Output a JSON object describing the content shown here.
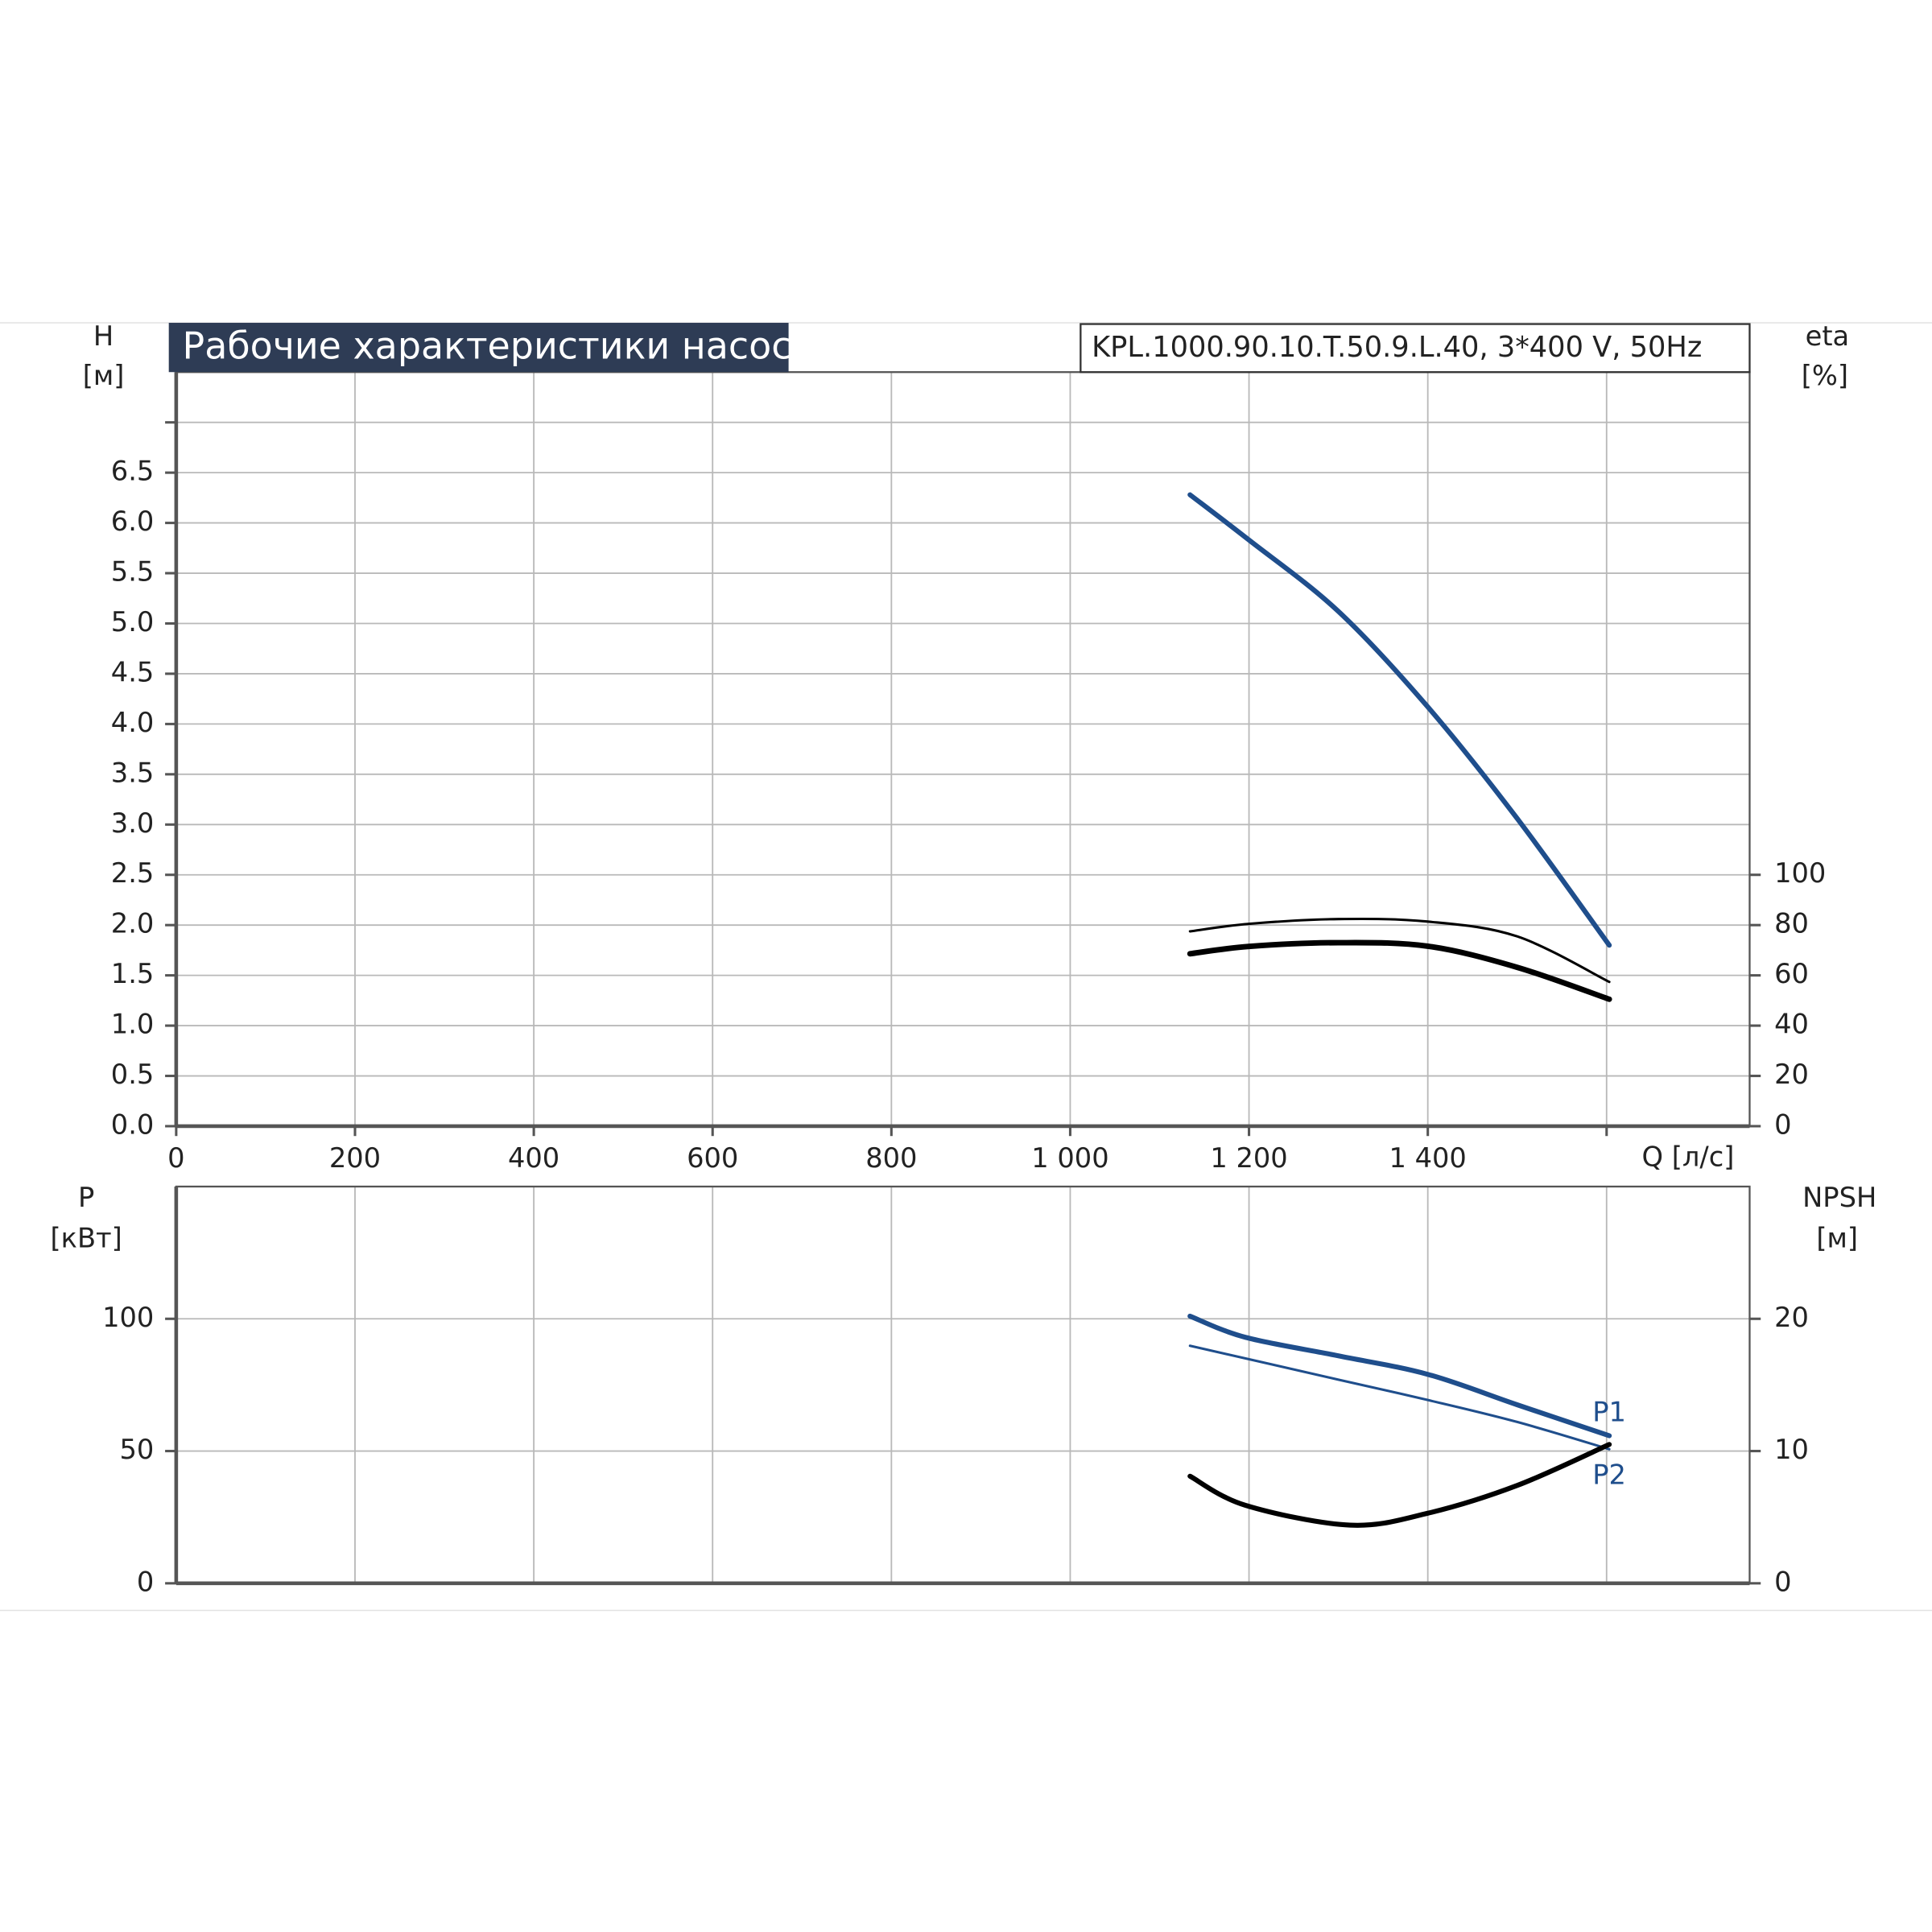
{
  "chart_data": [
    {
      "type": "line",
      "title": "Рабочие характеристики насоса",
      "subtitle": "KPL.1000.90.10.T.50.9.L.40, 3*400 V, 50Hz",
      "ylabel": "H",
      "yunit": "[м]",
      "y2label": "eta",
      "y2unit": "[%]",
      "xlabel": "Q [л/с]",
      "xlim": [
        0,
        1760
      ],
      "xticks": [
        0,
        200,
        400,
        600,
        800,
        {
          "value": 1000,
          "label": "1 000"
        },
        {
          "value": 1200,
          "label": "1 200"
        },
        {
          "value": 1400,
          "label": "1 400"
        },
        {
          "value": 1600,
          "label": null
        }
      ],
      "ylim": [
        0,
        7.5
      ],
      "yticks": [
        {
          "value": 0,
          "label": "0.0"
        },
        0.5,
        {
          "value": 1,
          "label": "1.0"
        },
        1.5,
        {
          "value": 2,
          "label": "2.0"
        },
        2.5,
        {
          "value": 3,
          "label": "3.0"
        },
        3.5,
        {
          "value": 4,
          "label": "4.0"
        },
        4.5,
        {
          "value": 5,
          "label": "5.0"
        },
        5.5,
        {
          "value": 6,
          "label": "6.0"
        },
        6.5,
        {
          "value": 7,
          "label": null
        }
      ],
      "y2lim": [
        0,
        300
      ],
      "y2ticks": [
        0,
        20,
        40,
        60,
        80,
        100
      ],
      "grid": true,
      "series": [
        {
          "color": "#1f4e8c",
          "line_width": 4,
          "x": [
            1134,
            1200,
            1300,
            1400,
            1500,
            1603
          ],
          "values": [
            6.28,
            5.83,
            5.12,
            4.17,
            3.06,
            1.8
          ]
        },
        {
          "color": "#000000",
          "line_width": 2,
          "axis": "y2",
          "x": [
            1134,
            1200,
            1300,
            1400,
            1500,
            1603
          ],
          "values": [
            77.5,
            80.5,
            82.4,
            81.4,
            75.5,
            57.4
          ]
        },
        {
          "color": "#000000",
          "line_width": 4.5,
          "axis": "y2",
          "x": [
            1134,
            1200,
            1300,
            1400,
            1500,
            1603
          ],
          "values": [
            68.6,
            71.5,
            73,
            71.6,
            63.2,
            50.5
          ]
        }
      ]
    },
    {
      "type": "line",
      "ylabel": "P",
      "yunit": "[кВт]",
      "y2label": "NPSH",
      "y2unit": "[м]",
      "ylim": [
        0,
        150
      ],
      "yticks": [
        0,
        50,
        100
      ],
      "y2lim": [
        0,
        30
      ],
      "y2ticks": [
        0,
        10,
        20
      ],
      "grid": true,
      "series": [
        {
          "name": "P1",
          "color": "#1f4e8c",
          "line_width": 4,
          "x": [
            1134,
            1196,
            1300,
            1400,
            1500,
            1603
          ],
          "values": [
            101,
            93,
            86,
            79,
            67.5,
            55.8
          ]
        },
        {
          "name": "P2",
          "color": "#1f4e8c",
          "line_width": 2,
          "x": [
            1134,
            1300,
            1400,
            1500,
            1603
          ],
          "values": [
            89.8,
            77,
            69.3,
            61,
            50.7
          ]
        },
        {
          "color": "#000000",
          "line_width": 4,
          "axis": "y2",
          "x": [
            1134,
            1196,
            1313,
            1400,
            1500,
            1603
          ],
          "values": [
            8.1,
            5.9,
            4.4,
            5.3,
            7.4,
            10.5
          ]
        }
      ]
    }
  ]
}
